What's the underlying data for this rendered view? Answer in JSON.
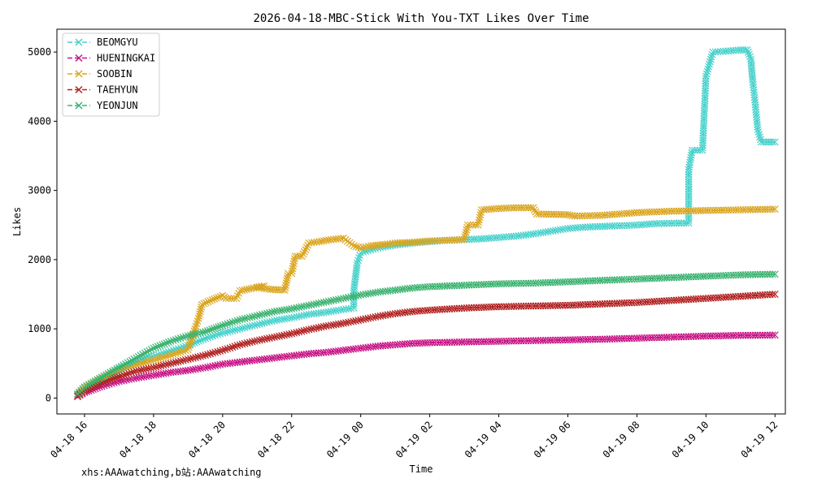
{
  "chart_data": {
    "type": "line",
    "title": "2026-04-18-MBC-Stick With You-TXT Likes Over Time",
    "xlabel": "Time",
    "ylabel": "Likes",
    "footer": "xhs:AAAwatching,b站:AAAwatching",
    "x_ticks": [
      "04-18 16",
      "04-18 18",
      "04-18 20",
      "04-18 22",
      "04-19 00",
      "04-19 02",
      "04-19 04",
      "04-19 06",
      "04-19 08",
      "04-19 10",
      "04-19 12"
    ],
    "y_ticks": [
      0,
      1000,
      2000,
      3000,
      4000,
      5000
    ],
    "xlim_hours": [
      15.2,
      36.3
    ],
    "ylim": [
      -230,
      5330
    ],
    "legend_position": "upper-left",
    "grid": false,
    "series": [
      {
        "name": "BEOMGYU",
        "color": "#48d1cc",
        "points": [
          [
            15.8,
            50
          ],
          [
            16.2,
            180
          ],
          [
            16.6,
            300
          ],
          [
            17,
            420
          ],
          [
            17.5,
            520
          ],
          [
            18,
            600
          ],
          [
            18.5,
            680
          ],
          [
            19,
            760
          ],
          [
            19.5,
            860
          ],
          [
            20,
            940
          ],
          [
            20.5,
            1000
          ],
          [
            21,
            1060
          ],
          [
            21.5,
            1120
          ],
          [
            22,
            1160
          ],
          [
            22.5,
            1210
          ],
          [
            23,
            1240
          ],
          [
            23.5,
            1280
          ],
          [
            23.8,
            1300
          ],
          [
            23.8,
            1550
          ],
          [
            23.85,
            1750
          ],
          [
            23.9,
            1950
          ],
          [
            24,
            2100
          ],
          [
            24.5,
            2170
          ],
          [
            25,
            2210
          ],
          [
            25.5,
            2240
          ],
          [
            26,
            2260
          ],
          [
            26.5,
            2280
          ],
          [
            27,
            2290
          ],
          [
            27.5,
            2300
          ],
          [
            28,
            2320
          ],
          [
            28.5,
            2340
          ],
          [
            29,
            2370
          ],
          [
            29.5,
            2410
          ],
          [
            30,
            2450
          ],
          [
            30.5,
            2470
          ],
          [
            31,
            2480
          ],
          [
            31.5,
            2490
          ],
          [
            32,
            2500
          ],
          [
            32.5,
            2520
          ],
          [
            33.5,
            2530
          ],
          [
            33.5,
            3300
          ],
          [
            33.6,
            3580
          ],
          [
            33.9,
            3580
          ],
          [
            34,
            4650
          ],
          [
            34.2,
            5000
          ],
          [
            34.5,
            5010
          ],
          [
            35,
            5030
          ],
          [
            35.2,
            5030
          ],
          [
            35.3,
            4900
          ],
          [
            35.35,
            4600
          ],
          [
            35.4,
            4380
          ],
          [
            35.45,
            4130
          ],
          [
            35.5,
            3880
          ],
          [
            35.6,
            3700
          ],
          [
            36,
            3700
          ]
        ]
      },
      {
        "name": "HUENINGKAI",
        "color": "#c71585",
        "points": [
          [
            15.8,
            20
          ],
          [
            16,
            80
          ],
          [
            16.5,
            170
          ],
          [
            17,
            240
          ],
          [
            17.5,
            290
          ],
          [
            18,
            330
          ],
          [
            18.5,
            370
          ],
          [
            19,
            400
          ],
          [
            19.5,
            440
          ],
          [
            20,
            490
          ],
          [
            20.5,
            520
          ],
          [
            21,
            550
          ],
          [
            21.5,
            580
          ],
          [
            22,
            610
          ],
          [
            22.5,
            640
          ],
          [
            23,
            660
          ],
          [
            23.5,
            690
          ],
          [
            24,
            720
          ],
          [
            24.5,
            750
          ],
          [
            25,
            770
          ],
          [
            25.5,
            790
          ],
          [
            26,
            800
          ],
          [
            27,
            810
          ],
          [
            28,
            820
          ],
          [
            29,
            830
          ],
          [
            30,
            840
          ],
          [
            31,
            850
          ],
          [
            32,
            865
          ],
          [
            33,
            880
          ],
          [
            34,
            895
          ],
          [
            35,
            905
          ],
          [
            36,
            910
          ]
        ]
      },
      {
        "name": "SOOBIN",
        "color": "#daa520",
        "points": [
          [
            15.8,
            30
          ],
          [
            16,
            140
          ],
          [
            16.5,
            280
          ],
          [
            17,
            400
          ],
          [
            17.5,
            480
          ],
          [
            18,
            550
          ],
          [
            18.5,
            620
          ],
          [
            19,
            700
          ],
          [
            19.2,
            1000
          ],
          [
            19.3,
            1150
          ],
          [
            19.4,
            1350
          ],
          [
            19.7,
            1420
          ],
          [
            20,
            1480
          ],
          [
            20.1,
            1440
          ],
          [
            20.4,
            1440
          ],
          [
            20.5,
            1550
          ],
          [
            20.9,
            1590
          ],
          [
            21.2,
            1620
          ],
          [
            21,
            1600
          ],
          [
            21.4,
            1570
          ],
          [
            21.8,
            1560
          ],
          [
            21.9,
            1800
          ],
          [
            22,
            1800
          ],
          [
            22.1,
            2050
          ],
          [
            22.3,
            2050
          ],
          [
            22.5,
            2240
          ],
          [
            22.8,
            2260
          ],
          [
            23,
            2280
          ],
          [
            23.5,
            2310
          ],
          [
            23.8,
            2200
          ],
          [
            24,
            2170
          ],
          [
            24.3,
            2200
          ],
          [
            24.7,
            2220
          ],
          [
            25,
            2240
          ],
          [
            25.5,
            2250
          ],
          [
            26,
            2270
          ],
          [
            26.5,
            2280
          ],
          [
            27,
            2290
          ],
          [
            27.1,
            2500
          ],
          [
            27.4,
            2500
          ],
          [
            27.5,
            2720
          ],
          [
            28,
            2740
          ],
          [
            28.5,
            2750
          ],
          [
            29,
            2750
          ],
          [
            29.1,
            2660
          ],
          [
            30,
            2650
          ],
          [
            30.2,
            2630
          ],
          [
            31,
            2640
          ],
          [
            32,
            2680
          ],
          [
            33,
            2700
          ],
          [
            34,
            2710
          ],
          [
            35,
            2720
          ],
          [
            36,
            2730
          ]
        ]
      },
      {
        "name": "TAEHYUN",
        "color": "#b22222",
        "points": [
          [
            15.8,
            30
          ],
          [
            16,
            100
          ],
          [
            16.5,
            220
          ],
          [
            17,
            310
          ],
          [
            17.5,
            390
          ],
          [
            18,
            440
          ],
          [
            18.5,
            500
          ],
          [
            19,
            560
          ],
          [
            19.5,
            620
          ],
          [
            20,
            690
          ],
          [
            20.5,
            770
          ],
          [
            21,
            830
          ],
          [
            21.5,
            880
          ],
          [
            22,
            930
          ],
          [
            22.5,
            990
          ],
          [
            23,
            1040
          ],
          [
            23.5,
            1080
          ],
          [
            24,
            1130
          ],
          [
            24.5,
            1180
          ],
          [
            25,
            1220
          ],
          [
            25.5,
            1250
          ],
          [
            26,
            1270
          ],
          [
            27,
            1300
          ],
          [
            28,
            1320
          ],
          [
            29,
            1330
          ],
          [
            30,
            1340
          ],
          [
            31,
            1360
          ],
          [
            32,
            1380
          ],
          [
            33,
            1410
          ],
          [
            34,
            1440
          ],
          [
            35,
            1470
          ],
          [
            36,
            1500
          ]
        ]
      },
      {
        "name": "YEONJUN",
        "color": "#3cb371",
        "points": [
          [
            15.8,
            60
          ],
          [
            16,
            160
          ],
          [
            16.5,
            300
          ],
          [
            17,
            440
          ],
          [
            17.5,
            580
          ],
          [
            18,
            720
          ],
          [
            18.5,
            820
          ],
          [
            19,
            900
          ],
          [
            19.5,
            960
          ],
          [
            20,
            1050
          ],
          [
            20.5,
            1130
          ],
          [
            21,
            1190
          ],
          [
            21.5,
            1250
          ],
          [
            22,
            1290
          ],
          [
            22.5,
            1340
          ],
          [
            23,
            1390
          ],
          [
            23.5,
            1440
          ],
          [
            24,
            1490
          ],
          [
            24.5,
            1530
          ],
          [
            25,
            1560
          ],
          [
            25.5,
            1590
          ],
          [
            26,
            1610
          ],
          [
            27,
            1630
          ],
          [
            28,
            1650
          ],
          [
            29,
            1660
          ],
          [
            30,
            1680
          ],
          [
            31,
            1700
          ],
          [
            32,
            1720
          ],
          [
            33,
            1740
          ],
          [
            34,
            1760
          ],
          [
            35,
            1780
          ],
          [
            36,
            1790
          ]
        ]
      }
    ]
  }
}
